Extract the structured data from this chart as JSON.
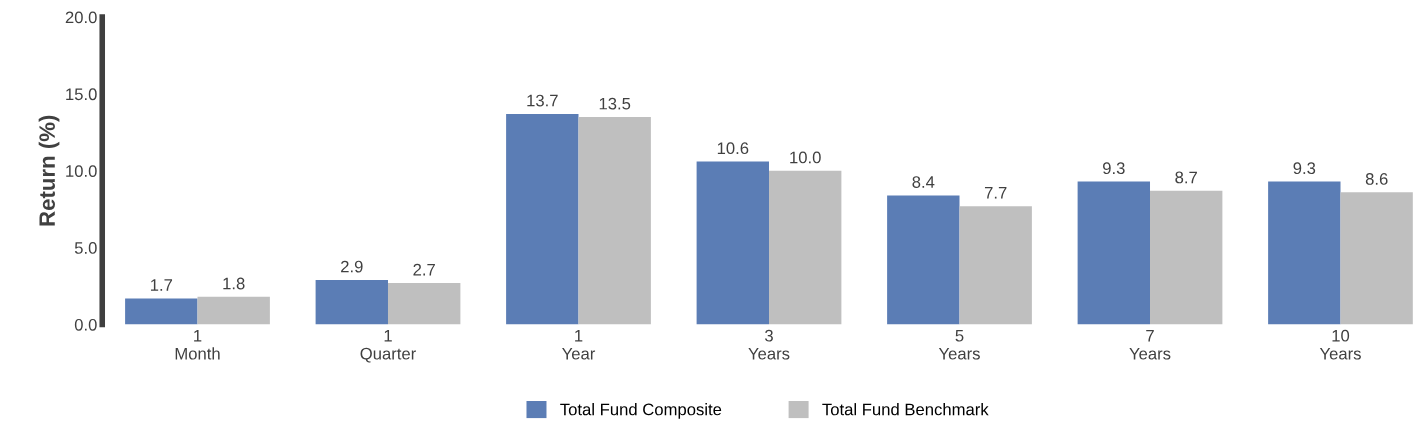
{
  "chart_data": {
    "type": "bar",
    "ylabel": "Return (%)",
    "categories": [
      "1\nMonth",
      "1\nQuarter",
      "1\nYear",
      "3\nYears",
      "5\nYears",
      "7\nYears",
      "10\nYears"
    ],
    "series": [
      {
        "name": "Total Fund Composite",
        "color": "#5b7db5",
        "values": [
          1.7,
          2.9,
          13.7,
          10.6,
          8.4,
          9.3,
          9.3
        ],
        "value_labels": [
          "1.7",
          "2.9",
          "13.7",
          "10.6",
          "8.4",
          "9.3",
          "9.3"
        ]
      },
      {
        "name": "Total Fund Benchmark",
        "color": "#bfbfbf",
        "values": [
          1.8,
          2.7,
          13.5,
          10.0,
          7.7,
          8.7,
          8.6
        ],
        "value_labels": [
          "1.8",
          "2.7",
          "13.5",
          "10.0",
          "7.7",
          "8.7",
          "8.6"
        ]
      }
    ],
    "ylim": [
      0,
      20
    ],
    "yticks": [
      {
        "value": 0,
        "label": "0.0"
      },
      {
        "value": 5,
        "label": "5.0"
      },
      {
        "value": 10,
        "label": "10.0"
      },
      {
        "value": 15,
        "label": "15.0"
      },
      {
        "value": 20,
        "label": "20.0"
      }
    ],
    "legend": "bottom",
    "grid": false
  }
}
